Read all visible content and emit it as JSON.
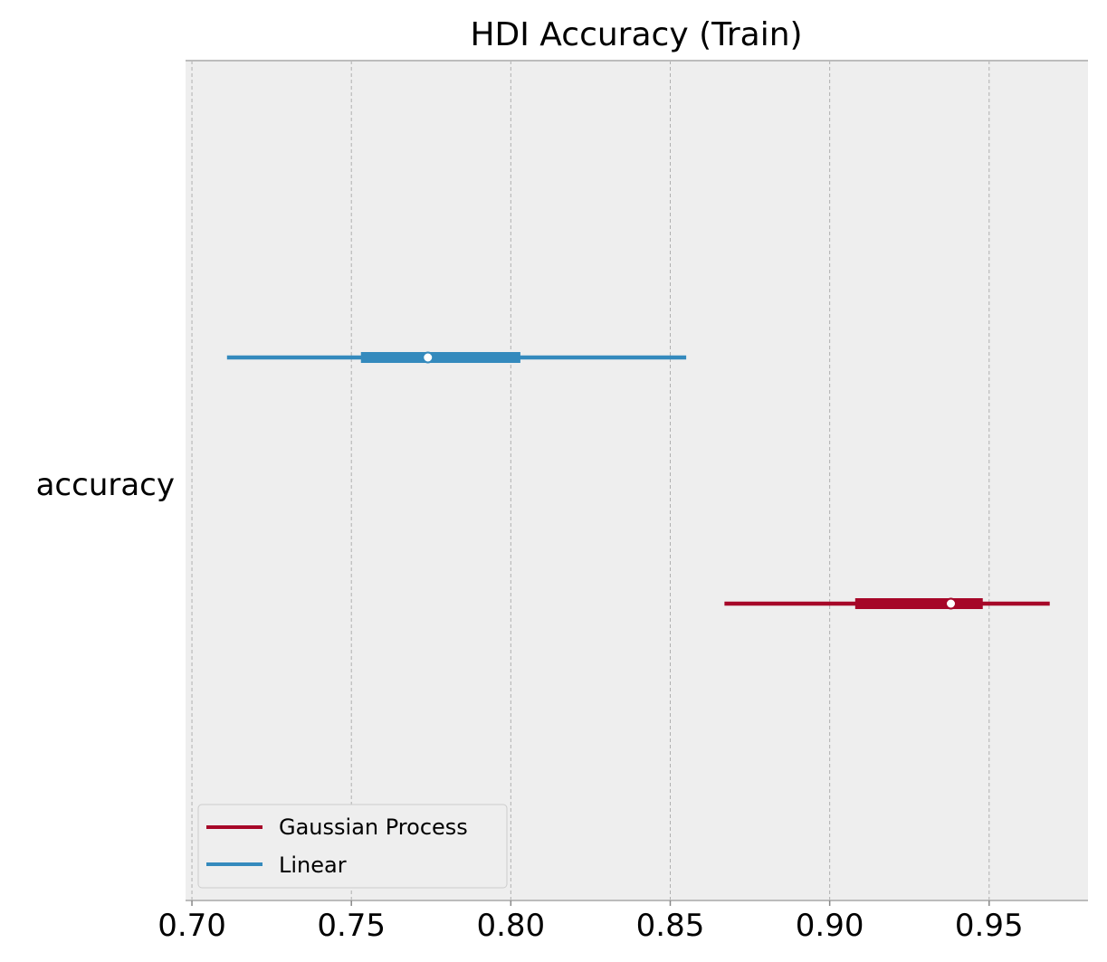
{
  "chart_data": {
    "type": "forest",
    "title": "HDI Accuracy (Train)",
    "variable_label": "accuracy",
    "xlim": [
      0.698,
      0.981
    ],
    "xticks": [
      {
        "value": 0.7,
        "label": "0.70"
      },
      {
        "value": 0.75,
        "label": "0.75"
      },
      {
        "value": 0.8,
        "label": "0.80"
      },
      {
        "value": 0.85,
        "label": "0.85"
      },
      {
        "value": 0.9,
        "label": "0.90"
      },
      {
        "value": 0.95,
        "label": "0.95"
      }
    ],
    "grid": "x-dashed",
    "legend_position": "lower-left",
    "series": [
      {
        "name": "Gaussian Process",
        "color": "#a60628",
        "hdi_low": 0.867,
        "hdi_high": 0.969,
        "iqr_low": 0.908,
        "iqr_high": 0.948,
        "point": 0.938
      },
      {
        "name": "Linear",
        "color": "#348abd",
        "hdi_low": 0.711,
        "hdi_high": 0.855,
        "iqr_low": 0.753,
        "iqr_high": 0.803,
        "point": 0.774
      }
    ]
  },
  "legend": {
    "items": [
      {
        "label": "Gaussian Process",
        "color": "#a60628"
      },
      {
        "label": "Linear",
        "color": "#348abd"
      }
    ]
  }
}
